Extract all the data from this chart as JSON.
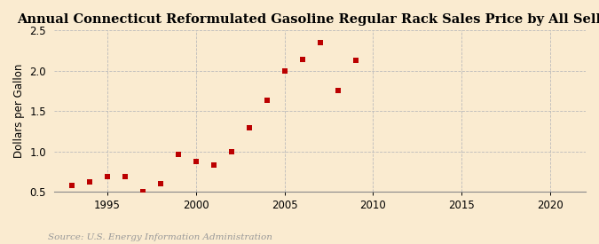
{
  "title": "Annual Connecticut Reformulated Gasoline Regular Rack Sales Price by All Sellers",
  "ylabel": "Dollars per Gallon",
  "source": "Source: U.S. Energy Information Administration",
  "years": [
    1993,
    1994,
    1995,
    1996,
    1997,
    1998,
    1999,
    2000,
    2001,
    2002,
    2003,
    2004,
    2005,
    2006,
    2007,
    2008,
    2009,
    2010
  ],
  "values": [
    0.58,
    0.62,
    0.69,
    0.69,
    0.5,
    0.6,
    0.96,
    0.87,
    0.83,
    1.0,
    1.29,
    1.63,
    2.0,
    2.14,
    2.35,
    1.75,
    2.13,
    null
  ],
  "marker_color": "#bb0000",
  "marker_size": 18,
  "background_color": "#faebd0",
  "grid_color": "#bbbbbb",
  "xlim": [
    1992,
    2022
  ],
  "ylim": [
    0.5,
    2.5
  ],
  "xticks": [
    1995,
    2000,
    2005,
    2010,
    2015,
    2020
  ],
  "yticks": [
    0.5,
    1.0,
    1.5,
    2.0,
    2.5
  ],
  "title_fontsize": 10.5,
  "ylabel_fontsize": 8.5,
  "tick_fontsize": 8.5,
  "source_fontsize": 7.5,
  "source_color": "#999999"
}
